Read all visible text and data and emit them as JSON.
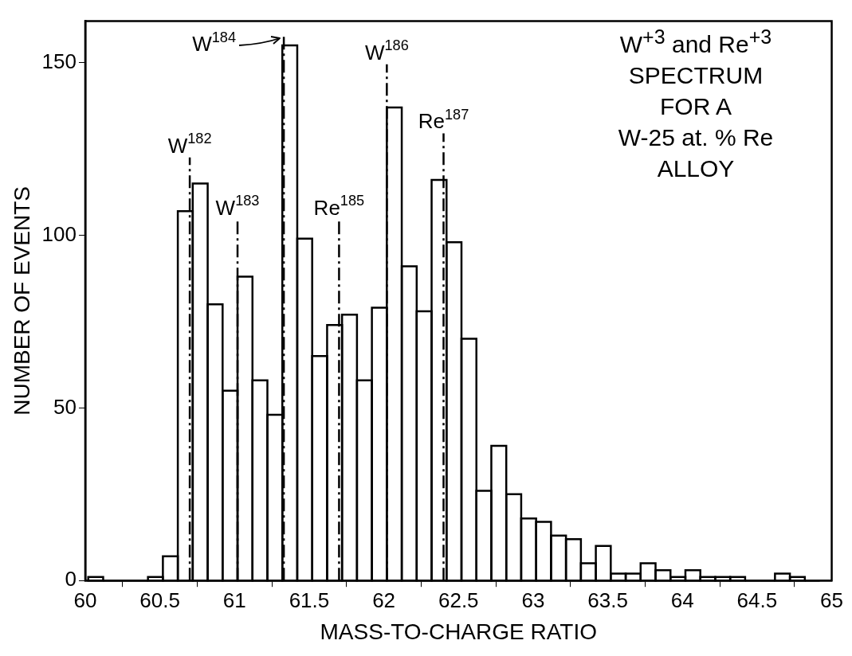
{
  "chart_data": {
    "type": "histogram",
    "title": "W$^{+3}$ and Re$^{+3}$\nSPECTRUM\nFOR  A\nW-25 at. % Re\nALLOY",
    "xlabel": "MASS-TO-CHARGE RATIO",
    "ylabel": "NUMBER OF EVENTS",
    "color": "#000000",
    "bins": [
      60.02,
      60.12,
      60.22,
      60.32,
      60.42,
      60.52,
      60.62,
      60.72,
      60.82,
      60.92,
      61.02,
      61.12,
      61.22,
      61.32,
      61.42,
      61.52,
      61.62,
      61.72,
      61.82,
      61.92,
      62.02,
      62.12,
      62.22,
      62.32,
      62.42,
      62.52,
      62.62,
      62.72,
      62.82,
      62.92,
      63.02,
      63.12,
      63.22,
      63.32,
      63.42,
      63.52,
      63.62,
      63.72,
      63.82,
      63.92,
      64.02,
      64.12,
      64.22,
      64.32,
      64.42,
      64.52,
      64.62,
      64.72,
      64.82,
      64.92
    ],
    "values": [
      1,
      0,
      0,
      0,
      1,
      7,
      107,
      115,
      80,
      55,
      88,
      58,
      48,
      155,
      99,
      65,
      74,
      77,
      58,
      79,
      137,
      91,
      78,
      116,
      98,
      70,
      26,
      39,
      25,
      18,
      17,
      13,
      12,
      5,
      10,
      2,
      2,
      5,
      3,
      1,
      3,
      1,
      1,
      1,
      0,
      0,
      2,
      1,
      0
    ],
    "xlim": [
      60,
      65
    ],
    "xticks": [
      60,
      60.5,
      61,
      61.5,
      62,
      62.5,
      63,
      63.5,
      64,
      64.5,
      65
    ],
    "ylim": [
      0,
      162
    ],
    "yticks": [
      0,
      50,
      100,
      150
    ],
    "ref_lines": [
      {
        "axis": "x",
        "value": 60.7,
        "line_style": "dashed"
      },
      {
        "axis": "x",
        "value": 61.02,
        "line_style": "dashed"
      },
      {
        "axis": "x",
        "value": 61.33,
        "line_style": "dashed"
      },
      {
        "axis": "x",
        "value": 61.7,
        "line_style": "dashed"
      },
      {
        "axis": "x",
        "value": 62.02,
        "line_style": "dashed"
      },
      {
        "axis": "x",
        "value": 62.4,
        "line_style": "dashed"
      }
    ],
    "annotations": [
      {
        "text": "W$^{182}$",
        "x": 60.7,
        "y": 123
      },
      {
        "text": "W$^{183}$",
        "x": 61.02,
        "y": 105
      },
      {
        "text": "W$^{184}$",
        "x": 61.33,
        "y": 157
      },
      {
        "text": "Re$^{185}$",
        "x": 61.7,
        "y": 105
      },
      {
        "text": "W$^{186}$",
        "x": 62.02,
        "y": 150
      },
      {
        "text": "Re$^{187}$",
        "x": 62.4,
        "y": 130
      }
    ]
  }
}
